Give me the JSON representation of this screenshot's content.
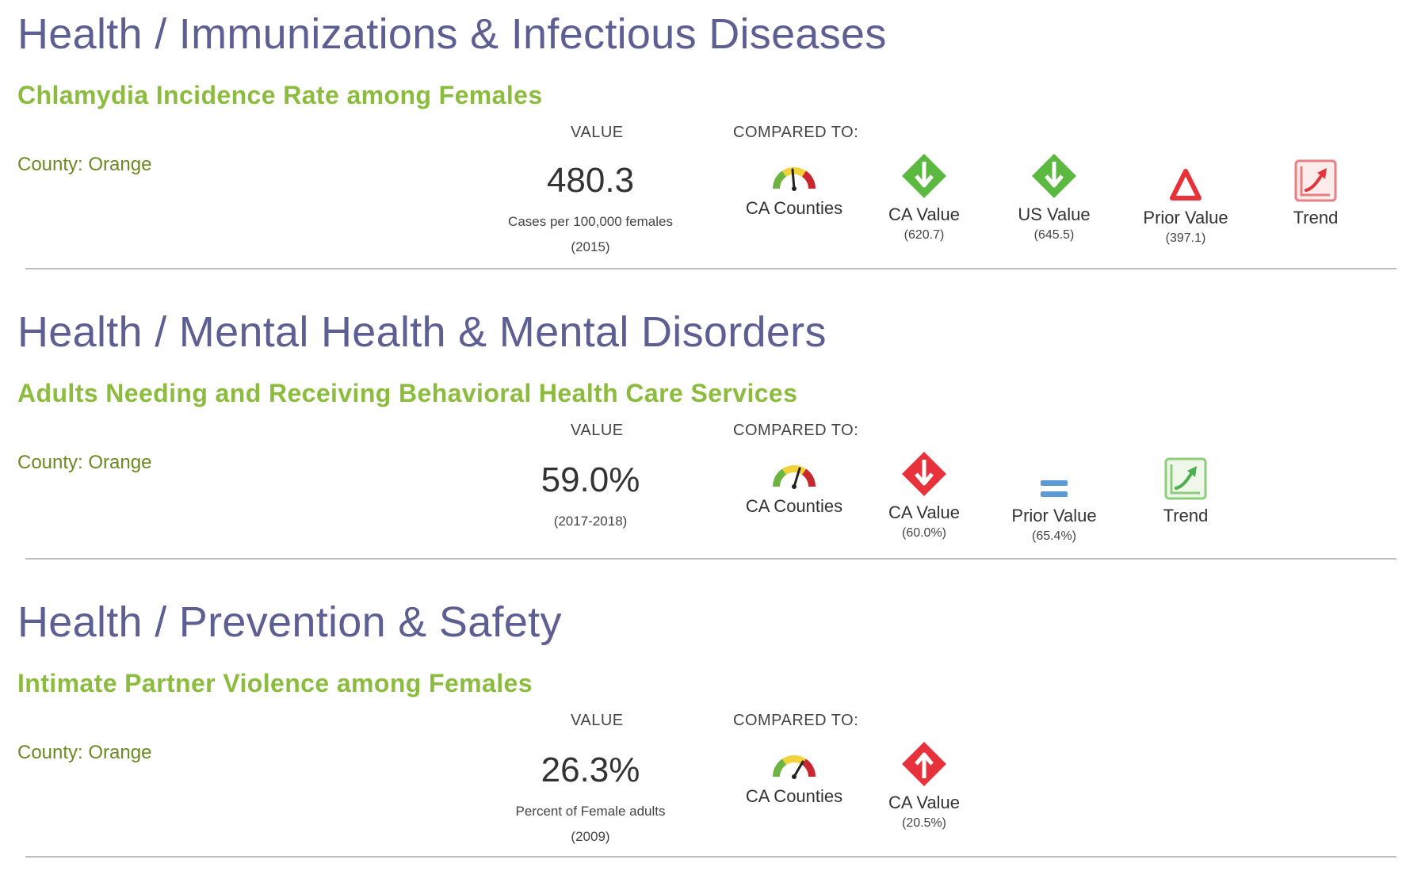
{
  "sections": [
    {
      "category": "Health / Immunizations & Infectious Diseases",
      "indicator": "Chlamydia Incidence Rate among Females",
      "county": "County: Orange",
      "value_header": "VALUE",
      "compared_header": "COMPARED TO:",
      "value": "480.3",
      "units": "Cases per 100,000 females",
      "year": "(2015)",
      "comparisons": [
        {
          "icon": "gauge-icon",
          "label": "CA Counties",
          "sub": ""
        },
        {
          "icon": "green-down-arrow-icon",
          "label": "CA Value",
          "sub": "(620.7)"
        },
        {
          "icon": "green-down-arrow-icon",
          "label": "US Value",
          "sub": "(645.5)"
        },
        {
          "icon": "red-triangle-icon",
          "label": "Prior Value",
          "sub": "(397.1)"
        },
        {
          "icon": "red-trend-icon",
          "label": "Trend",
          "sub": ""
        }
      ]
    },
    {
      "category": "Health / Mental Health & Mental Disorders",
      "indicator": "Adults Needing and Receiving Behavioral Health Care Services",
      "county": "County: Orange",
      "value_header": "VALUE",
      "compared_header": "COMPARED TO:",
      "value": "59.0%",
      "units": "",
      "year": "(2017-2018)",
      "comparisons": [
        {
          "icon": "gauge-icon",
          "label": "CA Counties",
          "sub": ""
        },
        {
          "icon": "red-down-arrow-icon",
          "label": "CA Value",
          "sub": "(60.0%)"
        },
        {
          "icon": "equal-icon",
          "label": "Prior Value",
          "sub": "(65.4%)"
        },
        {
          "icon": "green-trend-icon",
          "label": "Trend",
          "sub": ""
        }
      ]
    },
    {
      "category": "Health / Prevention & Safety",
      "indicator": "Intimate Partner Violence among Females",
      "county": "County: Orange",
      "value_header": "VALUE",
      "compared_header": "COMPARED TO:",
      "value": "26.3%",
      "units": "Percent of Female adults",
      "year": "(2009)",
      "comparisons": [
        {
          "icon": "gauge-icon",
          "label": "CA Counties",
          "sub": ""
        },
        {
          "icon": "red-up-arrow-icon",
          "label": "CA Value",
          "sub": "(20.5%)"
        }
      ]
    }
  ],
  "colors": {
    "category": "#5d5f93",
    "indicator": "#8cbc3e",
    "county": "#6a8a22",
    "good": "#5cb940",
    "bad": "#e8323b",
    "neutral": "#5b9bd5"
  }
}
